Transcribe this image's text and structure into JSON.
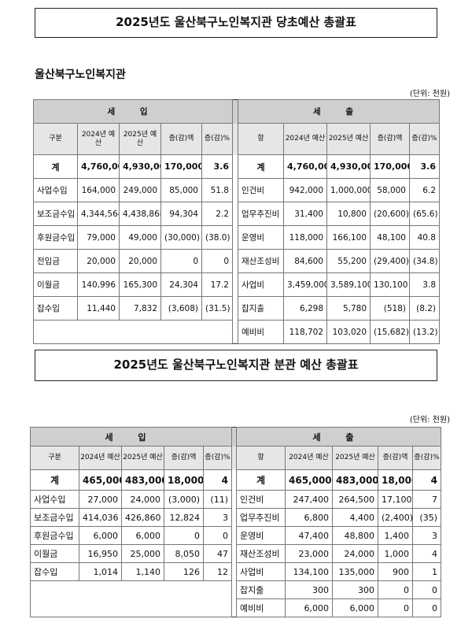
{
  "doc1": {
    "title": "2025년도 울산북구노인복지관 당초예산 총괄표",
    "subtitle": "울산북구노인복지관",
    "unit": "(단위: 천원)",
    "income_header": "세 입",
    "expense_header": "세 출",
    "income_cols": [
      "구분",
      "2024년 예산",
      "2025년 예산",
      "증(감)액",
      "증(감)%"
    ],
    "expense_cols": [
      "항",
      "2024년 예산",
      "2025년 예산",
      "증(감)액",
      "증(감)%"
    ],
    "total": {
      "income": [
        "계",
        "4,760,000",
        "4,930,000",
        "170,000",
        "3.6"
      ],
      "expense": [
        "계",
        "4,760,000",
        "4,930,000",
        "170,000",
        "3.6"
      ]
    },
    "income_rows": [
      [
        "사업수입",
        "164,000",
        "249,000",
        "85,000",
        "51.8"
      ],
      [
        "보조금수입",
        "4,344,564",
        "4,438,868",
        "94,304",
        "2.2"
      ],
      [
        "후원금수입",
        "79,000",
        "49,000",
        "(30,000)",
        "(38.0)"
      ],
      [
        "전입금",
        "20,000",
        "20,000",
        "0",
        "0"
      ],
      [
        "이월금",
        "140,996",
        "165,300",
        "24,304",
        "17.2"
      ],
      [
        "잡수입",
        "11,440",
        "7,832",
        "(3,608)",
        "(31.5)"
      ]
    ],
    "expense_rows": [
      [
        "인건비",
        "942,000",
        "1,000,000",
        "58,000",
        "6.2"
      ],
      [
        "업무추진비",
        "31,400",
        "10,800",
        "(20,600)",
        "(65.6)"
      ],
      [
        "운영비",
        "118,000",
        "166,100",
        "48,100",
        "40.8"
      ],
      [
        "재산조성비",
        "84,600",
        "55,200",
        "(29,400)",
        "(34.8)"
      ],
      [
        "사업비",
        "3,459,000",
        "3,589,100",
        "130,100",
        "3.8"
      ],
      [
        "잡지출",
        "6,298",
        "5,780",
        "(518)",
        "(8.2)"
      ],
      [
        "예비비",
        "118,702",
        "103,020",
        "(15,682)",
        "(13.2)"
      ]
    ]
  },
  "doc2": {
    "title": "2025년도 울산북구노인복지관 분관 예산 총괄표",
    "unit": "(단위: 천원)",
    "income_header": "세 입",
    "expense_header": "세 출",
    "income_cols": [
      "구분",
      "2024년 예산",
      "2025년 예산",
      "증(감)액",
      "증(감)%"
    ],
    "expense_cols": [
      "항",
      "2024년 예산",
      "2025년 예산",
      "증(감)액",
      "증(감)%"
    ],
    "total": {
      "income": [
        "계",
        "465,000",
        "483,000",
        "18,000",
        "4"
      ],
      "expense": [
        "계",
        "465,000",
        "483,000",
        "18,000",
        "4"
      ]
    },
    "income_rows": [
      [
        "사업수입",
        "27,000",
        "24,000",
        "(3,000)",
        "(11)"
      ],
      [
        "보조금수입",
        "414,036",
        "426,860",
        "12,824",
        "3"
      ],
      [
        "후원금수입",
        "6,000",
        "6,000",
        "0",
        "0"
      ],
      [
        "이월금",
        "16,950",
        "25,000",
        "8,050",
        "47"
      ],
      [
        "잡수입",
        "1,014",
        "1,140",
        "126",
        "12"
      ]
    ],
    "expense_rows": [
      [
        "인건비",
        "247,400",
        "264,500",
        "17,100",
        "7"
      ],
      [
        "업무추진비",
        "6,800",
        "4,400",
        "(2,400)",
        "(35)"
      ],
      [
        "운영비",
        "47,400",
        "48,800",
        "1,400",
        "3"
      ],
      [
        "재산조성비",
        "23,000",
        "24,000",
        "1,000",
        "4"
      ],
      [
        "사업비",
        "134,100",
        "135,000",
        "900",
        "1"
      ],
      [
        "잡지출",
        "300",
        "300",
        "0",
        "0"
      ],
      [
        "예비비",
        "6,000",
        "6,000",
        "0",
        "0"
      ]
    ]
  }
}
